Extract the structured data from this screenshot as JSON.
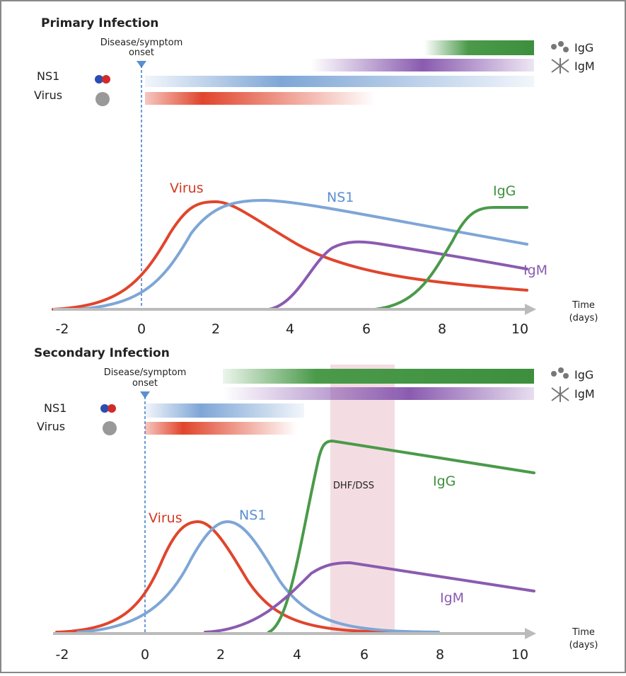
{
  "panels": [
    {
      "title": "Primary Infection",
      "onset": [
        "Disease/symptom",
        "onset"
      ],
      "row_labels": [
        "NS1",
        "Virus"
      ],
      "legend": [
        "IgG",
        "IgM"
      ],
      "curve_labels": [
        "Virus",
        "NS1",
        "IgG",
        "IgM"
      ],
      "x_ticks": [
        "-2",
        "0",
        "2",
        "4",
        "6",
        "8",
        "10"
      ],
      "x_label": [
        "Time",
        "(days)"
      ]
    },
    {
      "title": "Secondary Infection",
      "onset": [
        "Disease/symptom",
        "onset"
      ],
      "row_labels": [
        "NS1",
        "Virus"
      ],
      "legend": [
        "IgG",
        "IgM"
      ],
      "curve_labels": [
        "Virus",
        "NS1",
        "IgG",
        "IgM"
      ],
      "shaded_region": "DHF/DSS",
      "x_ticks": [
        "-2",
        "0",
        "2",
        "4",
        "6",
        "8",
        "10"
      ],
      "x_label": [
        "Time",
        "(days)"
      ]
    }
  ]
}
